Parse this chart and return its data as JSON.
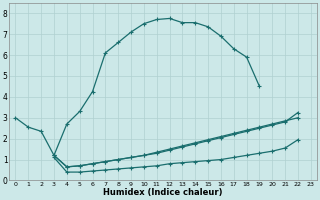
{
  "xlabel": "Humidex (Indice chaleur)",
  "background_color": "#cce8e8",
  "grid_color": "#b0d0d0",
  "line_color": "#1a6e6e",
  "xlim": [
    -0.5,
    23.5
  ],
  "ylim": [
    0,
    8.5
  ],
  "xticks": [
    0,
    1,
    2,
    3,
    4,
    5,
    6,
    7,
    8,
    9,
    10,
    11,
    12,
    13,
    14,
    15,
    16,
    17,
    18,
    19,
    20,
    21,
    22,
    23
  ],
  "yticks": [
    0,
    1,
    2,
    3,
    4,
    5,
    6,
    7,
    8
  ],
  "upper_curve": {
    "x": [
      3,
      4,
      5,
      6,
      7,
      8,
      9,
      10,
      11,
      12,
      13,
      14,
      15,
      16,
      17,
      18,
      19
    ],
    "y": [
      1.2,
      2.7,
      3.3,
      4.25,
      6.1,
      6.6,
      7.1,
      7.5,
      7.7,
      7.75,
      7.55,
      7.55,
      7.35,
      6.9,
      6.3,
      5.9,
      4.5
    ]
  },
  "line_left": {
    "x": [
      0,
      1,
      2,
      3,
      4,
      5,
      6,
      7,
      8,
      9,
      10,
      11,
      12,
      13,
      14,
      15,
      16,
      17,
      18,
      19,
      20,
      21,
      22
    ],
    "y": [
      3.0,
      2.55,
      2.35,
      1.2,
      0.65,
      0.7,
      0.8,
      0.9,
      1.0,
      1.1,
      1.2,
      1.3,
      1.45,
      1.6,
      1.75,
      1.9,
      2.05,
      2.2,
      2.35,
      2.5,
      2.65,
      2.8,
      3.25
    ]
  },
  "line_middle": {
    "x": [
      3,
      4,
      5,
      6,
      7,
      8,
      9,
      10,
      11,
      12,
      13,
      14,
      15,
      16,
      17,
      18,
      19,
      20,
      21,
      22
    ],
    "y": [
      1.2,
      0.65,
      0.7,
      0.8,
      0.9,
      1.0,
      1.1,
      1.2,
      1.35,
      1.5,
      1.65,
      1.8,
      1.95,
      2.1,
      2.25,
      2.4,
      2.55,
      2.7,
      2.85,
      3.0
    ]
  },
  "line_bottom": {
    "x": [
      3,
      4,
      5,
      6,
      7,
      8,
      9,
      10,
      11,
      12,
      13,
      14,
      15,
      16,
      17,
      18,
      19,
      20,
      21,
      22
    ],
    "y": [
      1.1,
      0.4,
      0.4,
      0.45,
      0.5,
      0.55,
      0.6,
      0.65,
      0.7,
      0.8,
      0.85,
      0.9,
      0.95,
      1.0,
      1.1,
      1.2,
      1.3,
      1.4,
      1.55,
      1.95
    ]
  }
}
